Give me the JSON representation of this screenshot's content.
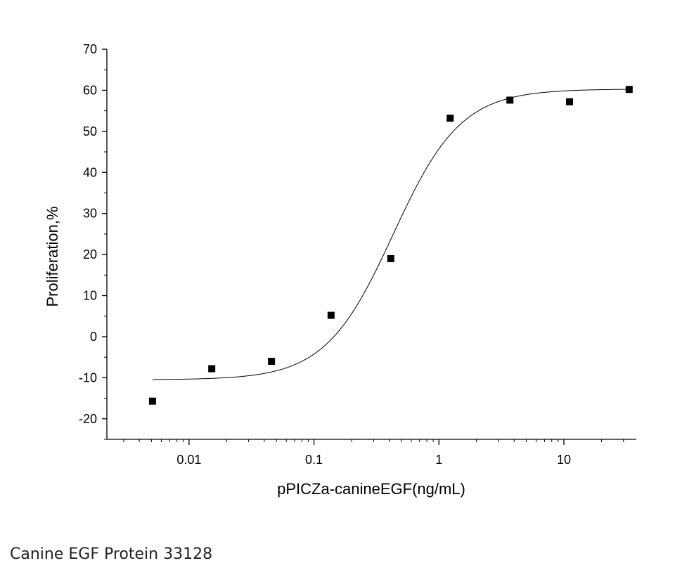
{
  "caption": "Canine EGF Protein 33128",
  "colors": {
    "axis": "#000000",
    "marker": "#000000",
    "curve": "#000000"
  },
  "chart_data": {
    "type": "scatter",
    "title": "",
    "xlabel": "pPICZa-canineEGF(ng/mL)",
    "ylabel": "Proliferation,%",
    "xscale": "log",
    "xlim": [
      0.0022,
      38
    ],
    "ylim": [
      -25,
      70
    ],
    "xticks": [
      0.01,
      0.1,
      1,
      10
    ],
    "xtick_labels": [
      "0.01",
      "0.1",
      "1",
      "10"
    ],
    "yticks": [
      -20,
      -10,
      0,
      10,
      20,
      30,
      40,
      50,
      60,
      70
    ],
    "ytick_labels": [
      "-20",
      "-10",
      "0",
      "10",
      "20",
      "30",
      "40",
      "50",
      "60",
      "70"
    ],
    "grid": false,
    "legend": "none",
    "marker": "square",
    "series": [
      {
        "x": [
          0.0051,
          0.0152,
          0.0457,
          0.137,
          0.412,
          1.23,
          3.7,
          11.1,
          33.3
        ],
        "y": [
          -15.7,
          -7.8,
          -6.0,
          5.2,
          19.0,
          53.2,
          57.6,
          57.2,
          60.2
        ]
      }
    ],
    "fit": {
      "type": "logistic",
      "bottom": -10.5,
      "top": 60.3,
      "ec50": 0.43,
      "hill": 1.6,
      "x_range": [
        0.0051,
        33.3
      ]
    }
  }
}
